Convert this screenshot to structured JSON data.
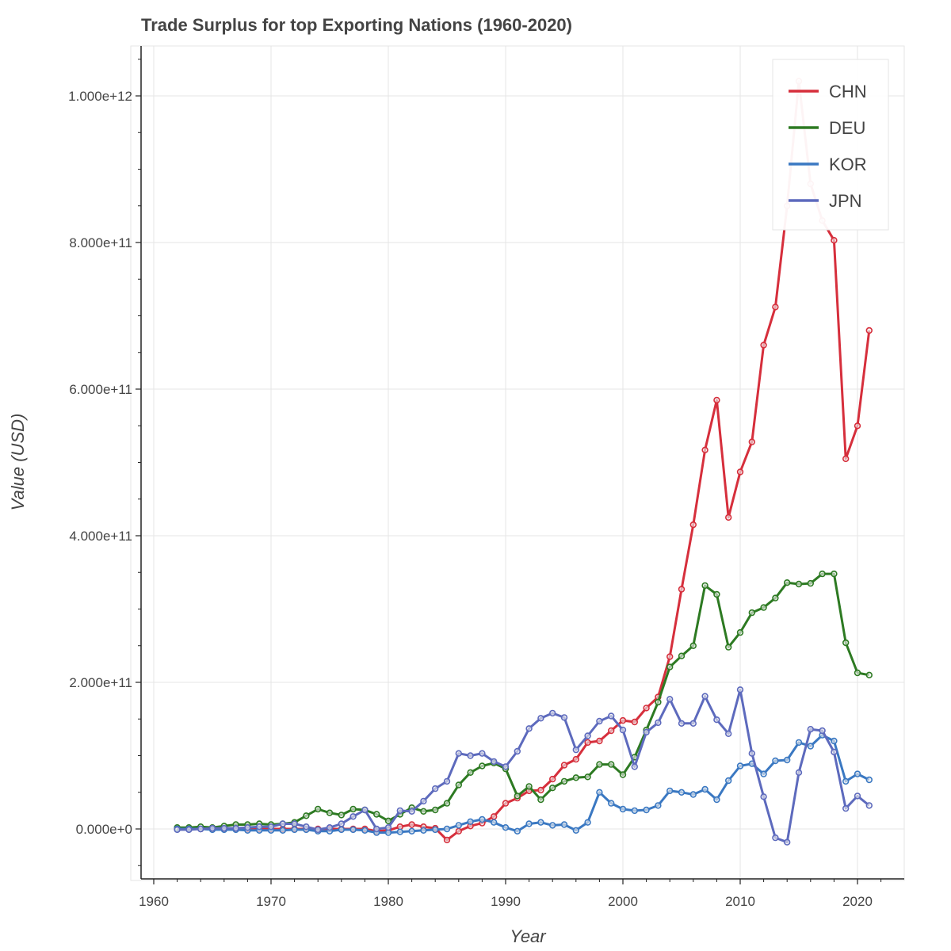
{
  "chart_data": {
    "type": "line",
    "title": "Trade Surplus for top Exporting Nations (1960-2020)",
    "xlabel": "Year",
    "ylabel": "Value (USD)",
    "xlim": [
      1958.8,
      1924.0
    ],
    "ylim": [
      -65000000000.0,
      1080000000000.0
    ],
    "x_ticks": [
      1960,
      1970,
      1980,
      1990,
      2000,
      2010,
      2020
    ],
    "x_tick_labels": [
      "1960",
      "1970",
      "1980",
      "1990",
      "2000",
      "2010",
      "2020"
    ],
    "y_ticks": [
      0,
      200000000000,
      400000000000,
      600000000000,
      800000000000,
      1000000000000
    ],
    "y_tick_labels": [
      "0.000e+0",
      "2.000e+11",
      "4.000e+11",
      "6.000e+11",
      "8.000e+11",
      "1.000e+12"
    ],
    "grid": true,
    "legend_position": "top-right",
    "x": [
      1962,
      1963,
      1964,
      1965,
      1966,
      1967,
      1968,
      1969,
      1970,
      1971,
      1972,
      1973,
      1974,
      1975,
      1976,
      1977,
      1978,
      1979,
      1980,
      1981,
      1982,
      1983,
      1984,
      1985,
      1986,
      1987,
      1988,
      1989,
      1990,
      1991,
      1992,
      1993,
      1994,
      1995,
      1996,
      1997,
      1998,
      1999,
      2000,
      2001,
      2002,
      2003,
      2004,
      2005,
      2006,
      2007,
      2008,
      2009,
      2010,
      2011,
      2012,
      2013,
      2014,
      2015,
      2016,
      2017,
      2018,
      2019,
      2020,
      2021
    ],
    "series": [
      {
        "name": "CHN",
        "color": "#d62f3c",
        "values": [
          0,
          0,
          0,
          0,
          0,
          0,
          0,
          0,
          0,
          0,
          0,
          0,
          0,
          0,
          0,
          0,
          0,
          -3000000000.0,
          -2000000000.0,
          3000000000.0,
          6000000000.0,
          3000000000.0,
          1000000000.0,
          -15000000000.0,
          -3000000000.0,
          4000000000.0,
          8000000000.0,
          17000000000.0,
          35000000000.0,
          42000000000.0,
          52000000000.0,
          53000000000.0,
          68000000000.0,
          87000000000.0,
          95000000000.0,
          118000000000.0,
          120000000000.0,
          134000000000.0,
          148000000000.0,
          146000000000.0,
          165000000000.0,
          180000000000.0,
          235000000000.0,
          327000000000.0,
          415000000000.0,
          517000000000.0,
          585000000000.0,
          425000000000.0,
          487000000000.0,
          528000000000.0,
          660000000000.0,
          712000000000.0,
          850000000000.0,
          1020000000000.0,
          880000000000.0,
          830000000000.0,
          803000000000.0,
          505000000000.0,
          550000000000.0,
          680000000000.0
        ]
      },
      {
        "name": "DEU",
        "color": "#2d7a22",
        "values": [
          2000000000.0,
          2000000000.0,
          3000000000.0,
          2000000000.0,
          4000000000.0,
          6000000000.0,
          6000000000.0,
          7000000000.0,
          6000000000.0,
          7000000000.0,
          9000000000.0,
          18000000000.0,
          27000000000.0,
          22000000000.0,
          19000000000.0,
          27000000000.0,
          26000000000.0,
          20000000000.0,
          11000000000.0,
          20000000000.0,
          29000000000.0,
          24000000000.0,
          26000000000.0,
          35000000000.0,
          60000000000.0,
          77000000000.0,
          86000000000.0,
          90000000000.0,
          82000000000.0,
          45000000000.0,
          58000000000.0,
          40000000000.0,
          56000000000.0,
          65000000000.0,
          70000000000.0,
          71000000000.0,
          88000000000.0,
          88000000000.0,
          74000000000.0,
          98000000000.0,
          135000000000.0,
          173000000000.0,
          221000000000.0,
          236000000000.0,
          250000000000.0,
          332000000000.0,
          320000000000.0,
          248000000000.0,
          268000000000.0,
          295000000000.0,
          302000000000.0,
          315000000000.0,
          336000000000.0,
          334000000000.0,
          335000000000.0,
          348000000000.0,
          348000000000.0,
          254000000000.0,
          213000000000.0,
          210000000000.0
        ]
      },
      {
        "name": "KOR",
        "color": "#3a78c2",
        "values": [
          0,
          0,
          0,
          -1000000000.0,
          -1000000000.0,
          -1000000000.0,
          -2000000000.0,
          -2000000000.0,
          -2000000000.0,
          -2000000000.0,
          -1000000000.0,
          -1000000000.0,
          -3000000000.0,
          -3000000000.0,
          -1000000000.0,
          -1000000000.0,
          -2000000000.0,
          -5000000000.0,
          -5000000000.0,
          -4000000000.0,
          -3000000000.0,
          -2000000000.0,
          -1000000000.0,
          0,
          5000000000.0,
          10000000000.0,
          13000000000.0,
          9000000000.0,
          2000000000.0,
          -3000000000.0,
          7000000000.0,
          9000000000.0,
          5000000000.0,
          6000000000.0,
          -2000000000.0,
          9000000000.0,
          50000000000.0,
          35000000000.0,
          27000000000.0,
          25000000000.0,
          26000000000.0,
          32000000000.0,
          52000000000.0,
          50000000000.0,
          47000000000.0,
          54000000000.0,
          40000000000.0,
          66000000000.0,
          86000000000.0,
          89000000000.0,
          75000000000.0,
          93000000000.0,
          94000000000.0,
          118000000000.0,
          113000000000.0,
          128000000000.0,
          120000000000.0,
          65000000000.0,
          75000000000.0,
          67000000000.0
        ]
      },
      {
        "name": "JPN",
        "color": "#5d6abd",
        "values": [
          -1000000000.0,
          -1000000000.0,
          0,
          1000000000.0,
          1000000000.0,
          1000000000.0,
          2000000000.0,
          3000000000.0,
          3000000000.0,
          7000000000.0,
          7000000000.0,
          3000000000.0,
          -1000000000.0,
          2000000000.0,
          7000000000.0,
          17000000000.0,
          26000000000.0,
          0,
          2000000000.0,
          25000000000.0,
          24000000000.0,
          38000000000.0,
          55000000000.0,
          65000000000.0,
          103000000000.0,
          100000000000.0,
          103000000000.0,
          92000000000.0,
          85000000000.0,
          106000000000.0,
          137000000000.0,
          151000000000.0,
          158000000000.0,
          152000000000.0,
          108000000000.0,
          127000000000.0,
          147000000000.0,
          154000000000.0,
          135000000000.0,
          85000000000.0,
          132000000000.0,
          145000000000.0,
          177000000000.0,
          144000000000.0,
          144000000000.0,
          181000000000.0,
          149000000000.0,
          130000000000.0,
          190000000000.0,
          103000000000.0,
          44000000000.0,
          -12000000000.0,
          -18000000000.0,
          77000000000.0,
          136000000000.0,
          134000000000.0,
          105000000000.0,
          28000000000.0,
          45000000000.0,
          32000000000.0
        ]
      }
    ]
  }
}
